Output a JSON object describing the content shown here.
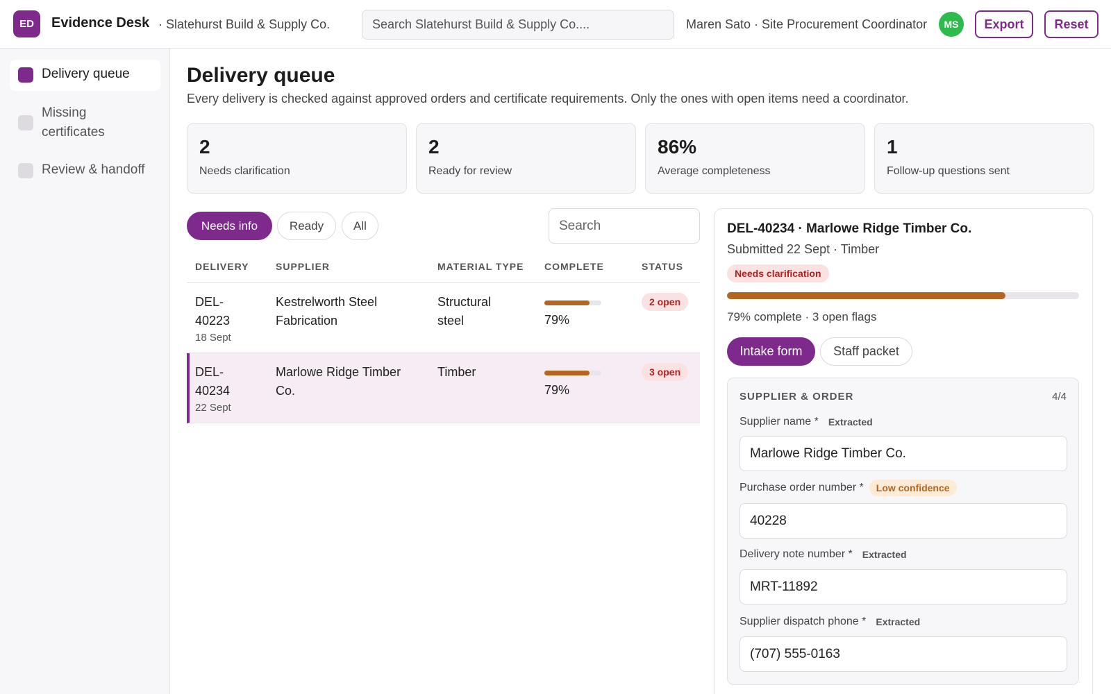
{
  "app": {
    "logo_initials": "ED",
    "title": "Evidence Desk",
    "org": "· Slatehurst Build & Supply Co.",
    "search_placeholder": "Search Slatehurst Build & Supply Co....",
    "user": "Maren Sato · Site Procurement Coordinator",
    "avatar_initials": "MS",
    "export_label": "Export",
    "reset_label": "Reset"
  },
  "sidebar": {
    "items": [
      {
        "label": "Delivery queue",
        "active": true
      },
      {
        "label": "Missing certificates",
        "active": false
      },
      {
        "label": "Review & handoff",
        "active": false
      }
    ]
  },
  "page": {
    "title": "Delivery queue",
    "subtitle": "Every delivery is checked against approved orders and certificate requirements. Only the ones with open items need a coordinator."
  },
  "stats": [
    {
      "value": "2",
      "label": "Needs clarification"
    },
    {
      "value": "2",
      "label": "Ready for review"
    },
    {
      "value": "86%",
      "label": "Average completeness"
    },
    {
      "value": "1",
      "label": "Follow-up questions sent"
    }
  ],
  "filters": {
    "pills": [
      "Needs info",
      "Ready",
      "All"
    ],
    "active": "Needs info",
    "search_placeholder": "Search"
  },
  "table": {
    "headers": [
      "DELIVERY",
      "SUPPLIER",
      "MATERIAL TYPE",
      "COMPLETE",
      "STATUS"
    ],
    "rows": [
      {
        "id_line1": "DEL-",
        "id_line2": "40223",
        "date": "18 Sept",
        "supplier_line1": "Kestrelworth Steel",
        "supplier_line2": "Fabrication",
        "material_line1": "Structural",
        "material_line2": "steel",
        "complete_pct": 79,
        "complete_label": "79%",
        "status": "2 open",
        "selected": false
      },
      {
        "id_line1": "DEL-",
        "id_line2": "40234",
        "date": "22 Sept",
        "supplier_line1": "Marlowe Ridge Timber",
        "supplier_line2": "Co.",
        "material_line1": "Timber",
        "material_line2": "",
        "complete_pct": 79,
        "complete_label": "79%",
        "status": "3 open",
        "selected": true
      }
    ]
  },
  "detail": {
    "title": "DEL-40234 · Marlowe Ridge Timber Co.",
    "subtitle": "Submitted 22 Sept · Timber",
    "status_badge": "Needs clarification",
    "complete_pct": 79,
    "progress_text": "79% complete · 3 open flags",
    "tabs": [
      "Intake form",
      "Staff packet"
    ],
    "section": {
      "title": "SUPPLIER & ORDER",
      "count": "4/4",
      "fields": [
        {
          "label": "Supplier name *",
          "tag": "Extracted",
          "tag_type": "extracted",
          "value": "Marlowe Ridge Timber Co."
        },
        {
          "label": "Purchase order number *",
          "tag": "Low confidence",
          "tag_type": "low",
          "value": "40228"
        },
        {
          "label": "Delivery note number *",
          "tag": "Extracted",
          "tag_type": "extracted",
          "value": "MRT-11892"
        },
        {
          "label": "Supplier dispatch phone *",
          "tag": "Extracted",
          "tag_type": "extracted",
          "value": "(707) 555-0163"
        }
      ]
    }
  },
  "colors": {
    "accent": "#7e2a8c",
    "progress": "#b4651f",
    "open_badge_bg": "#fbe2e2",
    "open_badge_text": "#b42020",
    "avatar": "#2dbb4e"
  }
}
